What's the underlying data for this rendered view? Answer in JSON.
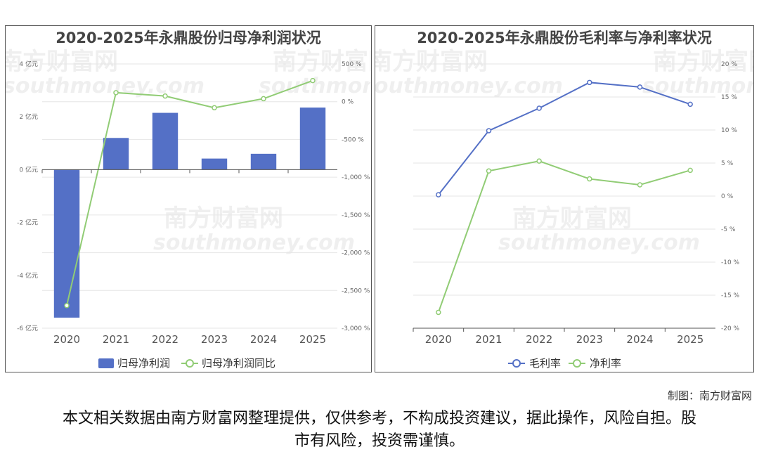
{
  "watermark": {
    "cn": "南方财富网",
    "en": "southmoney.com"
  },
  "credit": "制图：南方财富网",
  "disclaimer": "本文相关数据由南方财富网整理提供，仅供参考，不构成投资建议，据此操作，风险自担。股市有风险，投资需谨慎。",
  "chart_data": [
    {
      "type": "bar+line",
      "title": "2020-2025年永鼎股份归母净利润状况",
      "categories": [
        "2020",
        "2021",
        "2022",
        "2023",
        "2024",
        "2025"
      ],
      "y_left": {
        "ticks": [
          "4 亿元",
          "2 亿元",
          "0 亿元",
          "-2 亿元",
          "-4 亿元",
          "-6 亿元"
        ],
        "range": [
          -6,
          4
        ],
        "unit": "亿元"
      },
      "y_right": {
        "ticks": [
          "500 %",
          "0 %",
          "-500 %",
          "-1,000 %",
          "-1,500 %",
          "-2,000 %",
          "-2,500 %",
          "-3,000 %"
        ],
        "range": [
          -3000,
          500
        ],
        "unit": "%"
      },
      "series": [
        {
          "name": "归母净利润",
          "kind": "bar",
          "axis": "left",
          "color": "#5470c6",
          "values": [
            -5.6,
            1.2,
            2.15,
            0.42,
            0.6,
            2.35
          ]
        },
        {
          "name": "归母净利润同比",
          "kind": "line",
          "axis": "right",
          "color": "#91cc75",
          "values": [
            -2700,
            120,
            75,
            -80,
            40,
            280
          ]
        }
      ],
      "legend": "bottom-center",
      "grid": true
    },
    {
      "type": "line",
      "title": "2020-2025年永鼎股份毛利率与净利率状况",
      "categories": [
        "2020",
        "2021",
        "2022",
        "2023",
        "2024",
        "2025"
      ],
      "y_right": {
        "ticks": [
          "20 %",
          "15 %",
          "10 %",
          "5 %",
          "0 %",
          "-5 %",
          "-10 %",
          "-15 %",
          "-20 %"
        ],
        "range": [
          -20,
          20
        ],
        "unit": "%"
      },
      "series": [
        {
          "name": "毛利率",
          "color": "#5470c6",
          "values": [
            0.2,
            9.9,
            13.3,
            17.2,
            16.5,
            13.9
          ]
        },
        {
          "name": "净利率",
          "color": "#91cc75",
          "values": [
            -17.6,
            3.8,
            5.3,
            2.6,
            1.7,
            3.9
          ]
        }
      ],
      "legend": "bottom-center",
      "grid": true
    }
  ]
}
